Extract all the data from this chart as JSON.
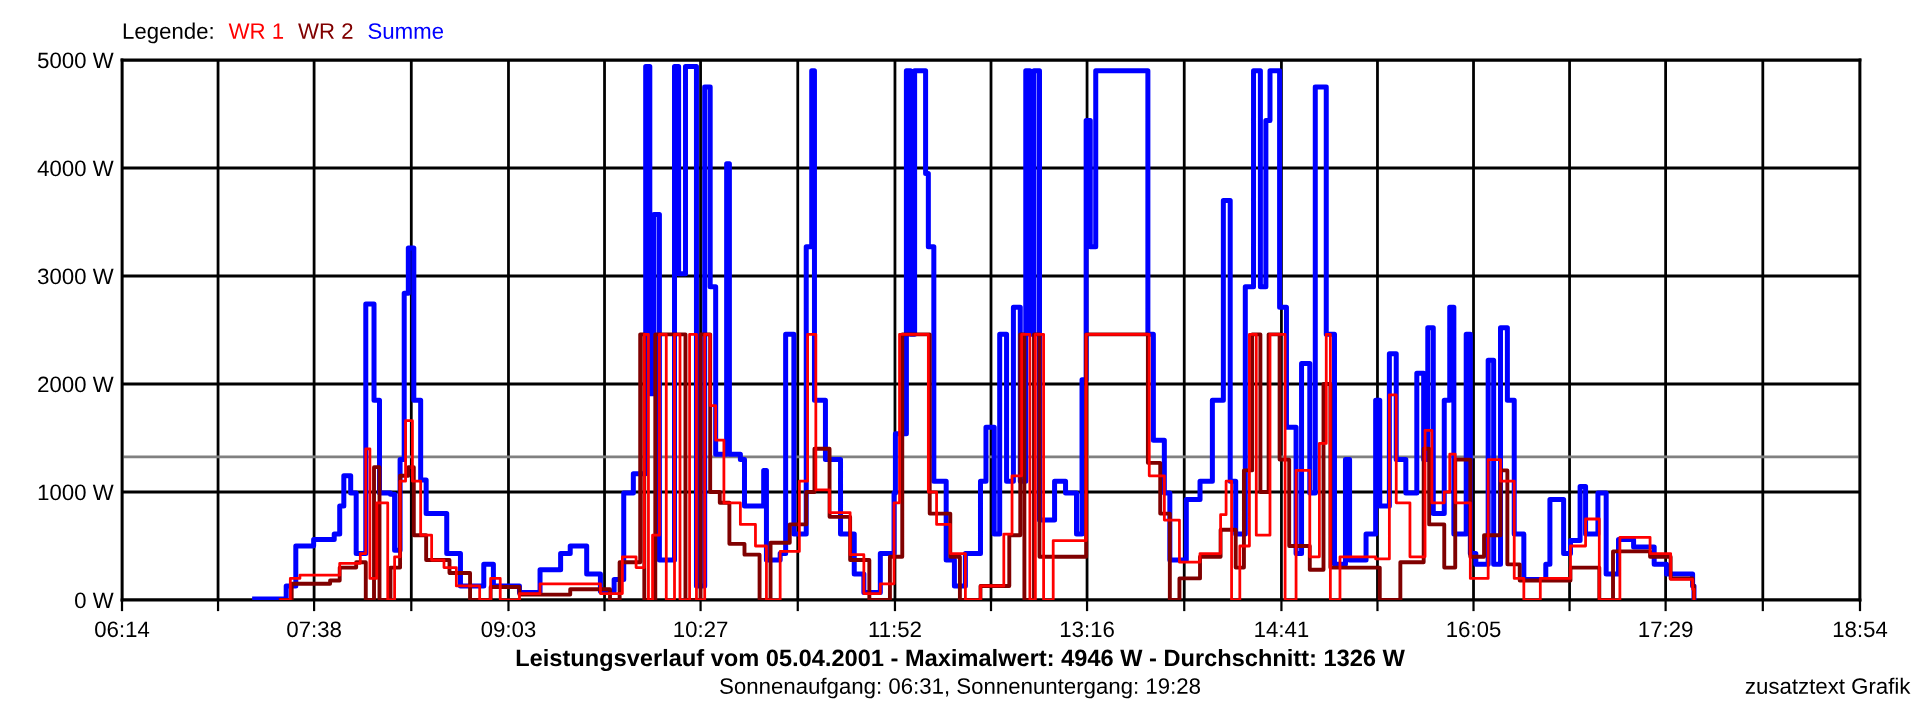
{
  "chart_data": {
    "type": "step",
    "title": "Leistungsverlauf vom 05.04.2001 - Maximalwert: 4946 W - Durchschnitt: 1326 W",
    "subtitle": "Sonnenaufgang: 06:31, Sonnenuntergang: 19:28",
    "legend_title": "Legende:",
    "annotations": [
      "zusatztext Grafik"
    ],
    "legend": "top left",
    "grid": true,
    "marker": "none",
    "line_style": "solid",
    "xlim": [
      6.2333,
      18.9
    ],
    "xticks": [
      {
        "value": 6.2333,
        "label": "06:14"
      },
      {
        "value": 6.9333,
        "label": null
      },
      {
        "value": 7.6333,
        "label": "07:38"
      },
      {
        "value": 8.3417,
        "label": null
      },
      {
        "value": 9.05,
        "label": "09:03"
      },
      {
        "value": 9.75,
        "label": null
      },
      {
        "value": 10.45,
        "label": "10:27"
      },
      {
        "value": 11.1583,
        "label": null
      },
      {
        "value": 11.8667,
        "label": "11:52"
      },
      {
        "value": 12.5667,
        "label": null
      },
      {
        "value": 13.2667,
        "label": "13:16"
      },
      {
        "value": 13.975,
        "label": null
      },
      {
        "value": 14.6833,
        "label": "14:41"
      },
      {
        "value": 15.3833,
        "label": null
      },
      {
        "value": 16.0833,
        "label": "16:05"
      },
      {
        "value": 16.7833,
        "label": null
      },
      {
        "value": 17.4833,
        "label": "17:29"
      },
      {
        "value": 18.1917,
        "label": null
      },
      {
        "value": 18.9,
        "label": "18:54"
      }
    ],
    "ylim": [
      0,
      5000
    ],
    "yticks": [
      {
        "value": 0,
        "label": "0 W"
      },
      {
        "value": 1000,
        "label": "1000 W"
      },
      {
        "value": 2000,
        "label": "2000 W"
      },
      {
        "value": 3000,
        "label": "3000 W"
      },
      {
        "value": 4000,
        "label": "4000 W"
      },
      {
        "value": 5000,
        "label": "5000 W"
      }
    ],
    "ref_lines": [
      {
        "axis": "y",
        "value": 1326,
        "color": "#808080"
      }
    ],
    "series": [
      {
        "name": "WR 1",
        "color": "#ff0000",
        "x": [
          7.39,
          7.46,
          7.53,
          7.75,
          7.82,
          7.97,
          8.01,
          8.04,
          8.09,
          8.17,
          8.22,
          8.26,
          8.3,
          8.35,
          8.41,
          8.49,
          8.58,
          8.67,
          8.84,
          8.92,
          8.99,
          9.13,
          9.28,
          9.5,
          9.72,
          9.88,
          9.98,
          10.04,
          10.07,
          10.1,
          10.15,
          10.2,
          10.26,
          10.3,
          10.37,
          10.42,
          10.48,
          10.52,
          10.56,
          10.62,
          10.74,
          10.85,
          10.93,
          11.03,
          11.17,
          11.23,
          11.29,
          11.39,
          11.54,
          11.64,
          11.76,
          11.86,
          11.9,
          12.11,
          12.17,
          12.27,
          12.38,
          12.49,
          12.66,
          12.72,
          12.79,
          12.85,
          12.89,
          12.95,
          13.02,
          13.26,
          13.7,
          13.72,
          13.83,
          13.94,
          14.09,
          14.24,
          14.28,
          14.32,
          14.38,
          14.45,
          14.5,
          14.6,
          14.71,
          14.79,
          14.89,
          14.96,
          15.01,
          15.04,
          15.11,
          15.37,
          15.47,
          15.52,
          15.62,
          15.73,
          15.78,
          15.87,
          15.91,
          15.95,
          16.06,
          16.19,
          16.28,
          16.38,
          16.45,
          16.57,
          16.79,
          16.9,
          17.0,
          17.15,
          17.37,
          17.52,
          17.68,
          17.69
        ],
        "values": [
          0,
          200,
          230,
          230,
          340,
          430,
          1400,
          200,
          900,
          0,
          400,
          1100,
          1660,
          1100,
          600,
          370,
          300,
          130,
          0,
          200,
          0,
          60,
          150,
          150,
          60,
          400,
          300,
          2460,
          0,
          600,
          2460,
          0,
          2460,
          0,
          2460,
          0,
          2460,
          1800,
          1480,
          900,
          700,
          500,
          0,
          450,
          1100,
          2460,
          1020,
          810,
          420,
          60,
          150,
          900,
          2460,
          1000,
          700,
          430,
          0,
          130,
          610,
          1150,
          2460,
          0,
          2460,
          0,
          550,
          2460,
          2460,
          1150,
          740,
          350,
          430,
          790,
          1100,
          0,
          500,
          2460,
          600,
          2460,
          0,
          1200,
          400,
          1450,
          2460,
          0,
          400,
          380,
          1900,
          900,
          400,
          1570,
          900,
          1000,
          1350,
          900,
          200,
          1300,
          1100,
          200,
          0,
          200,
          500,
          750,
          0,
          580,
          430,
          190,
          100,
          0
        ]
      },
      {
        "name": "WR 2",
        "color": "#800000",
        "x": [
          7.39,
          7.47,
          7.75,
          7.82,
          7.94,
          8.01,
          8.07,
          8.11,
          8.19,
          8.26,
          8.32,
          8.36,
          8.45,
          8.62,
          8.77,
          8.92,
          9.13,
          9.5,
          9.79,
          9.86,
          10.01,
          10.04,
          10.12,
          10.34,
          10.45,
          10.52,
          10.59,
          10.66,
          10.77,
          10.88,
          10.96,
          11.1,
          11.22,
          11.28,
          11.39,
          11.54,
          11.68,
          11.83,
          11.92,
          12.12,
          12.27,
          12.34,
          12.49,
          12.7,
          12.78,
          12.81,
          12.88,
          12.92,
          13.26,
          13.71,
          13.8,
          13.87,
          13.94,
          14.09,
          14.24,
          14.35,
          14.41,
          14.47,
          14.53,
          14.59,
          14.67,
          14.74,
          14.89,
          14.99,
          15.04,
          15.33,
          15.4,
          15.55,
          15.72,
          15.76,
          15.87,
          15.95,
          16.06,
          16.16,
          16.28,
          16.33,
          16.42,
          16.79,
          17.0,
          17.1,
          17.37,
          17.52,
          17.68,
          17.69
        ],
        "values": [
          0,
          150,
          180,
          300,
          350,
          0,
          1230,
          0,
          300,
          1150,
          1230,
          600,
          370,
          250,
          0,
          120,
          50,
          100,
          0,
          350,
          2460,
          0,
          2460,
          0,
          2460,
          1000,
          900,
          520,
          420,
          0,
          530,
          700,
          1000,
          1400,
          770,
          370,
          0,
          400,
          2460,
          800,
          400,
          0,
          130,
          600,
          2460,
          0,
          2460,
          400,
          2460,
          1270,
          800,
          0,
          200,
          400,
          650,
          300,
          1200,
          2460,
          1000,
          2460,
          1300,
          500,
          280,
          2000,
          300,
          300,
          0,
          350,
          1400,
          700,
          300,
          1300,
          400,
          600,
          1200,
          330,
          180,
          300,
          0,
          450,
          400,
          200,
          130,
          0
        ]
      },
      {
        "name": "Summe",
        "color": "#0000ff",
        "x": [
          7.2,
          7.43,
          7.5,
          7.63,
          7.78,
          7.82,
          7.85,
          7.9,
          7.94,
          8.01,
          8.07,
          8.11,
          8.19,
          8.22,
          8.26,
          8.29,
          8.32,
          8.36,
          8.41,
          8.45,
          8.6,
          8.7,
          8.87,
          8.94,
          9.13,
          9.28,
          9.43,
          9.5,
          9.62,
          9.72,
          9.82,
          9.89,
          9.96,
          10.05,
          10.08,
          10.11,
          10.15,
          10.26,
          10.29,
          10.34,
          10.42,
          10.48,
          10.52,
          10.56,
          10.64,
          10.66,
          10.74,
          10.77,
          10.91,
          10.93,
          11.03,
          11.07,
          11.13,
          11.22,
          11.26,
          11.28,
          11.36,
          11.47,
          11.57,
          11.64,
          11.76,
          11.86,
          11.87,
          11.95,
          11.98,
          12.01,
          12.09,
          12.11,
          12.15,
          12.24,
          12.3,
          12.38,
          12.49,
          12.53,
          12.59,
          12.63,
          12.68,
          12.73,
          12.78,
          12.82,
          12.85,
          12.88,
          12.92,
          13.03,
          13.11,
          13.19,
          13.23,
          13.26,
          13.29,
          13.33,
          13.7,
          13.71,
          13.75,
          13.83,
          13.87,
          13.99,
          14.09,
          14.18,
          14.26,
          14.31,
          14.35,
          14.42,
          14.48,
          14.53,
          14.57,
          14.6,
          14.67,
          14.72,
          14.79,
          14.83,
          14.89,
          14.93,
          15.01,
          15.07,
          15.15,
          15.18,
          15.3,
          15.37,
          15.4,
          15.47,
          15.52,
          15.59,
          15.67,
          15.72,
          15.75,
          15.79,
          15.87,
          15.91,
          15.94,
          16.03,
          16.06,
          16.1,
          16.19,
          16.23,
          16.28,
          16.33,
          16.38,
          16.45,
          16.61,
          16.64,
          16.74,
          16.79,
          16.86,
          16.9,
          16.99,
          17.05,
          17.14,
          17.25,
          17.4,
          17.49,
          17.68,
          17.69
        ],
        "values": [
          10,
          130,
          500,
          560,
          610,
          870,
          1150,
          990,
          430,
          2740,
          1850,
          990,
          980,
          460,
          1300,
          2840,
          3260,
          1850,
          1110,
          800,
          430,
          130,
          330,
          130,
          70,
          280,
          430,
          500,
          240,
          80,
          190,
          990,
          1170,
          4940,
          1910,
          3570,
          370,
          4940,
          3020,
          4940,
          130,
          4750,
          2900,
          1350,
          4040,
          1350,
          1300,
          870,
          1200,
          370,
          430,
          2460,
          610,
          3270,
          4900,
          1850,
          1300,
          610,
          240,
          70,
          430,
          990,
          1540,
          4900,
          2460,
          4900,
          3950,
          3270,
          1100,
          370,
          130,
          430,
          1100,
          1600,
          610,
          2460,
          1100,
          2710,
          1100,
          4900,
          2460,
          4900,
          740,
          1100,
          990,
          610,
          2040,
          4440,
          3270,
          4900,
          4900,
          2460,
          1480,
          990,
          370,
          930,
          1100,
          1850,
          3700,
          1100,
          610,
          2900,
          4900,
          2900,
          4440,
          4900,
          2710,
          1600,
          430,
          2190,
          990,
          4750,
          2460,
          330,
          1300,
          370,
          610,
          1850,
          870,
          2280,
          1300,
          990,
          2100,
          1300,
          2520,
          800,
          1850,
          2710,
          610,
          2460,
          430,
          330,
          2220,
          330,
          2520,
          1850,
          610,
          190,
          330,
          930,
          430,
          550,
          1050,
          610,
          990,
          240,
          560,
          490,
          330,
          240,
          130,
          0
        ]
      }
    ]
  }
}
